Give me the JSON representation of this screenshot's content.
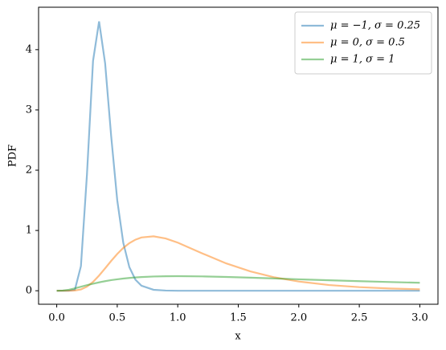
{
  "chart_data": {
    "type": "line",
    "x_label": "x",
    "y_label": "PDF",
    "x": [
      0,
      0.05,
      0.1,
      0.15,
      0.2,
      0.25,
      0.3,
      0.35,
      0.4,
      0.45,
      0.5,
      0.55,
      0.6,
      0.65,
      0.7,
      0.8,
      0.9,
      1.0,
      1.2,
      1.4,
      1.6,
      1.8,
      2.0,
      2.25,
      2.5,
      2.75,
      3.0
    ],
    "series": [
      {
        "name": "μ = −1, σ = 0.25",
        "color": "#1f77b4",
        "values": [
          0,
          0,
          0,
          0.017,
          0.409,
          1.934,
          3.813,
          4.469,
          3.772,
          2.562,
          1.502,
          0.795,
          0.392,
          0.184,
          0.083,
          0.016,
          0.003,
          0,
          0,
          0,
          0,
          0,
          0,
          0,
          0,
          0,
          0
        ]
      },
      {
        "name": "μ = 0, σ = 0.5",
        "color": "#ff7f0e",
        "values": [
          0,
          0,
          0,
          0.004,
          0.022,
          0.068,
          0.147,
          0.252,
          0.372,
          0.495,
          0.61,
          0.71,
          0.789,
          0.847,
          0.884,
          0.903,
          0.867,
          0.798,
          0.622,
          0.454,
          0.321,
          0.222,
          0.153,
          0.095,
          0.06,
          0.037,
          0.024
        ]
      },
      {
        "name": "μ = 1, σ = 1",
        "color": "#2ca02c",
        "values": [
          0,
          0.003,
          0.017,
          0.04,
          0.066,
          0.093,
          0.117,
          0.139,
          0.159,
          0.176,
          0.19,
          0.202,
          0.212,
          0.221,
          0.227,
          0.236,
          0.241,
          0.242,
          0.238,
          0.229,
          0.217,
          0.204,
          0.19,
          0.174,
          0.159,
          0.145,
          0.132
        ]
      }
    ],
    "line_alpha": 0.5,
    "legend": "upper right",
    "xlim": [
      -0.15,
      3.15
    ],
    "xticks": [
      {
        "value": 0,
        "label": "0.0"
      },
      {
        "value": 0.5,
        "label": "0.5"
      },
      {
        "value": 1,
        "label": "1.0"
      },
      {
        "value": 1.5,
        "label": "1.5"
      },
      {
        "value": 2,
        "label": "2.0"
      },
      {
        "value": 2.5,
        "label": "2.5"
      },
      {
        "value": 3,
        "label": "3.0"
      }
    ],
    "ylim": [
      -0.224,
      4.704
    ],
    "yticks": [
      0,
      1,
      2,
      3,
      4
    ]
  }
}
